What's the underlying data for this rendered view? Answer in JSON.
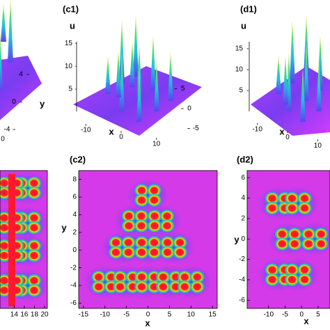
{
  "chart_data": [
    {
      "type": "surface",
      "ylabel": "y",
      "yticks": [
        4,
        0,
        -4
      ],
      "ylim": [
        -4,
        4
      ],
      "xticks": [
        0
      ]
    },
    {
      "type": "surface",
      "label": "(c1)",
      "zlabel": "u",
      "xlabel": "x",
      "zlim": [
        0,
        17
      ],
      "zticks": [
        5,
        10,
        15
      ],
      "xlim": [
        -15,
        15
      ],
      "xticks": [
        -10,
        0,
        10
      ],
      "ylim": [
        -7,
        7
      ],
      "yticks": [
        5,
        0,
        -5
      ]
    },
    {
      "type": "surface",
      "label": "(d1)",
      "zlabel": "u",
      "xlabel": "x",
      "zlim": [
        0,
        17
      ],
      "zticks": [
        5,
        10,
        15
      ],
      "xlim": [
        -15,
        15
      ],
      "xticks": [
        -10,
        0,
        10
      ]
    },
    {
      "type": "density",
      "xlim": [
        11.2,
        20.55
      ],
      "xticks": [
        14,
        16,
        18,
        20
      ]
    },
    {
      "type": "density",
      "label": "(c2)",
      "xlabel": "x",
      "ylabel": "y",
      "xlim": [
        -16.1,
        16.1
      ],
      "ylim": [
        -6.6,
        9
      ],
      "xticks": [
        -15,
        -10,
        -5,
        0,
        5,
        10,
        15
      ],
      "yticks": [
        8,
        6,
        4,
        2,
        0,
        -2,
        -4,
        -6
      ]
    },
    {
      "type": "density",
      "label": "(d2)",
      "xlabel": "x",
      "ylabel": "y",
      "xlim": [
        -16.5,
        8.6
      ],
      "ylim": [
        -6.8,
        6.7
      ],
      "xticks": [
        -10,
        -5,
        0,
        5
      ],
      "yticks": [
        6,
        4,
        2,
        0,
        -2,
        -4,
        -6
      ]
    }
  ]
}
